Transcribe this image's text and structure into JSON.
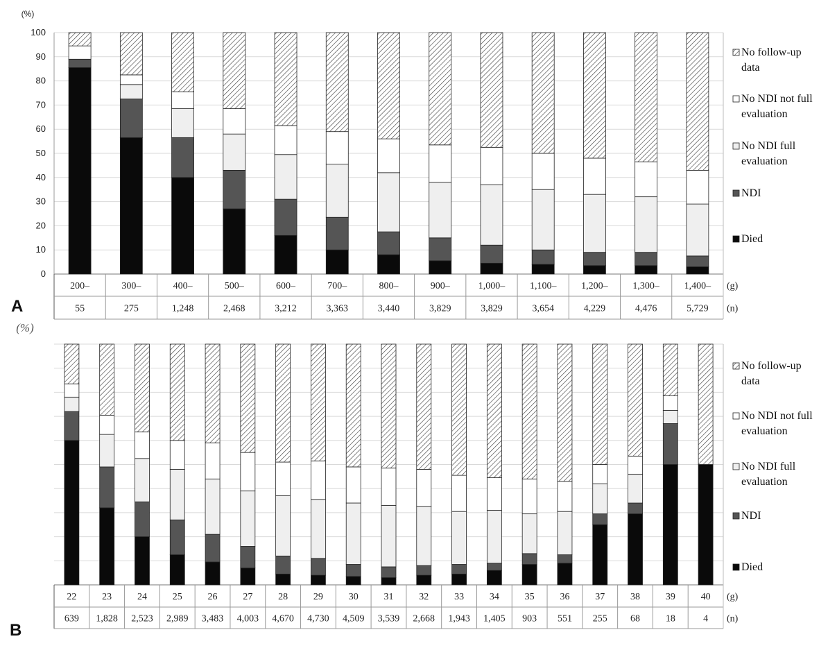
{
  "chart_data": [
    {
      "type": "bar",
      "stacked": true,
      "panel_label": "A",
      "y_unit": "(%)",
      "ylim": [
        0,
        100
      ],
      "yticks": [
        0,
        10,
        20,
        30,
        40,
        50,
        60,
        70,
        80,
        90,
        100
      ],
      "grid": true,
      "legend_position": "right",
      "categories": [
        "200–",
        "300–",
        "400–",
        "500–",
        "600–",
        "700–",
        "800–",
        "900–",
        "1,000–",
        "1,100–",
        "1,200–",
        "1,300–",
        "1,400–"
      ],
      "x_unit": "(g)",
      "n": [
        "55",
        "275",
        "1,248",
        "2,468",
        "3,212",
        "3,363",
        "3,440",
        "3,829",
        "3,829",
        "3,654",
        "4,229",
        "4,476",
        "5,729"
      ],
      "n_unit": "(n)",
      "series": [
        {
          "name": "Died",
          "values": [
            85.5,
            56.5,
            40,
            27,
            16,
            10,
            8,
            5.5,
            4.5,
            4,
            3.5,
            3.5,
            3
          ]
        },
        {
          "name": "NDI",
          "values": [
            3.5,
            16,
            16.5,
            16,
            15,
            13.5,
            9.5,
            9.5,
            7.5,
            6,
            5.5,
            5.5,
            4.5
          ]
        },
        {
          "name": "No NDI  full evaluation",
          "values": [
            0,
            6,
            12,
            15,
            18.5,
            22,
            24.5,
            23,
            25,
            25,
            24,
            23,
            21.5
          ]
        },
        {
          "name": "No NDI not full evaluation",
          "values": [
            5.5,
            4,
            7,
            10.5,
            12,
            13.5,
            14,
            15.5,
            15.5,
            15,
            15,
            14.5,
            14
          ]
        },
        {
          "name": "No follow-up data",
          "values": [
            5.5,
            17.5,
            24.5,
            31.5,
            38.5,
            41,
            44,
            46.5,
            47.5,
            50,
            52,
            53.5,
            57
          ]
        }
      ]
    },
    {
      "type": "bar",
      "stacked": true,
      "panel_label": "B",
      "y_unit": "(%)",
      "ylim": [
        0,
        100
      ],
      "grid": true,
      "legend_position": "right",
      "categories": [
        "22",
        "23",
        "24",
        "25",
        "26",
        "27",
        "28",
        "29",
        "30",
        "31",
        "32",
        "33",
        "34",
        "35",
        "36",
        "37",
        "38",
        "39",
        "40"
      ],
      "x_unit": "(g)",
      "n": [
        "639",
        "1,828",
        "2,523",
        "2,989",
        "3,483",
        "4,003",
        "4,670",
        "4,730",
        "4,509",
        "3,539",
        "2,668",
        "1,943",
        "1,405",
        "903",
        "551",
        "255",
        "68",
        "18",
        "4"
      ],
      "n_unit": "(n)",
      "series": [
        {
          "name": "Died",
          "values": [
            60,
            32,
            20,
            12.5,
            9.5,
            7,
            4.5,
            4,
            3.5,
            3,
            4,
            4.5,
            6,
            8.5,
            9,
            25,
            29.5,
            50,
            50
          ]
        },
        {
          "name": "NDI",
          "values": [
            12,
            17,
            14.5,
            14.5,
            11.5,
            9,
            7.5,
            7,
            5,
            4.5,
            4,
            4,
            3,
            4.5,
            3.5,
            4.5,
            4.5,
            17,
            0
          ]
        },
        {
          "name": "No NDI  full evaluation",
          "values": [
            6,
            13.5,
            18,
            21,
            23,
            23,
            25,
            24.5,
            25.5,
            25.5,
            24.5,
            22,
            22,
            16.5,
            18,
            12.5,
            12,
            5.5,
            0
          ]
        },
        {
          "name": "No NDI not full evaluation",
          "values": [
            5.5,
            8,
            11,
            12,
            15,
            16,
            14,
            16,
            15,
            15.5,
            15.5,
            15,
            13.5,
            14.5,
            12.5,
            8,
            7.5,
            6,
            0
          ]
        },
        {
          "name": "No follow-up data",
          "values": [
            16.5,
            29.5,
            36.5,
            40,
            41,
            45,
            49,
            48.5,
            51,
            51.5,
            52,
            54.5,
            55.5,
            56,
            57,
            50,
            46.5,
            21.5,
            50
          ]
        }
      ]
    }
  ],
  "legend": {
    "items": [
      {
        "key": "No follow-up data",
        "lines": [
          "No follow-up",
          "data"
        ]
      },
      {
        "key": "No NDI not full evaluation",
        "lines": [
          "No NDI not full",
          "evaluation"
        ]
      },
      {
        "key": "No NDI  full evaluation",
        "lines": [
          "No NDI  full",
          "evaluation"
        ]
      },
      {
        "key": "NDI",
        "lines": [
          "NDI"
        ]
      },
      {
        "key": "Died",
        "lines": [
          "Died"
        ]
      }
    ]
  },
  "colors": {
    "Died": "#0a0a0a",
    "NDI": "#555555",
    "No NDI  full evaluation": "#efefef",
    "No NDI not full evaluation": "#ffffff",
    "No follow-up data": "hatch"
  }
}
